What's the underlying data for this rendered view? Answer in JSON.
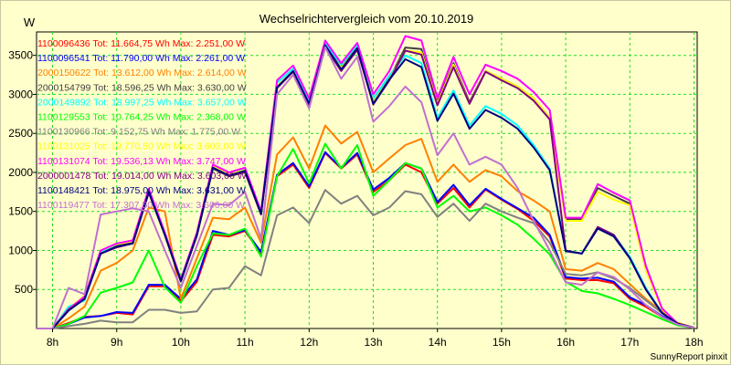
{
  "chart_data": {
    "type": "line",
    "title": "Wechselrichtervergleich vom 20.10.2019",
    "ylabel": "W",
    "xlabel": "",
    "footer": "SunnyReport pinxit",
    "ylim": [
      0,
      3800
    ],
    "xlim": [
      7.75,
      18.05
    ],
    "y_ticks": [
      500,
      1000,
      1500,
      2000,
      2500,
      3000,
      3500
    ],
    "x_ticks": [
      8,
      9,
      10,
      11,
      12,
      13,
      14,
      15,
      16,
      17,
      18
    ],
    "x_tick_labels": [
      "8h",
      "9h",
      "10h",
      "11h",
      "12h",
      "13h",
      "14h",
      "15h",
      "16h",
      "17h",
      "18h"
    ],
    "grid": true,
    "legend_position": "top-left",
    "x": [
      7.75,
      8.0,
      8.25,
      8.5,
      8.75,
      9.0,
      9.25,
      9.5,
      9.75,
      10.0,
      10.25,
      10.5,
      10.75,
      11.0,
      11.25,
      11.5,
      11.75,
      12.0,
      12.25,
      12.5,
      12.75,
      13.0,
      13.25,
      13.5,
      13.75,
      14.0,
      14.25,
      14.5,
      14.75,
      15.0,
      15.25,
      15.5,
      15.75,
      16.0,
      16.25,
      16.5,
      16.75,
      17.0,
      17.25,
      17.5,
      17.75,
      18.0
    ],
    "series": [
      {
        "name": "1100096436 Tot: 11.664,75 Wh Max: 2.251,00 W",
        "color": "#ff0000",
        "values": [
          0,
          0,
          70,
          150,
          160,
          200,
          180,
          540,
          540,
          350,
          600,
          1200,
          1180,
          1250,
          960,
          1950,
          2100,
          1800,
          2250,
          2050,
          2230,
          1750,
          1900,
          2100,
          2000,
          1600,
          1800,
          1550,
          1780,
          1650,
          1530,
          1380,
          1180,
          640,
          620,
          620,
          580,
          380,
          280,
          150,
          60,
          10
        ]
      },
      {
        "name": "1100096541 Tot: 11.790,00 Wh Max: 2.261,00 W",
        "color": "#0000ff",
        "values": [
          0,
          0,
          60,
          140,
          160,
          210,
          200,
          560,
          560,
          380,
          630,
          1250,
          1200,
          1260,
          980,
          1970,
          2120,
          1820,
          2260,
          2060,
          2250,
          1780,
          1930,
          2120,
          2050,
          1620,
          1840,
          1580,
          1790,
          1660,
          1540,
          1420,
          1200,
          660,
          640,
          650,
          600,
          400,
          300,
          160,
          60,
          10
        ]
      },
      {
        "name": "2000150622 Tot: 13.612,00 Wh Max: 2.614,00 W",
        "color": "#ff8000",
        "values": [
          0,
          0,
          130,
          280,
          740,
          840,
          1000,
          1550,
          1500,
          380,
          900,
          1420,
          1400,
          1550,
          1100,
          2230,
          2450,
          2050,
          2600,
          2370,
          2520,
          2000,
          2180,
          2350,
          2430,
          1880,
          2100,
          1880,
          2030,
          1950,
          1760,
          1640,
          1500,
          760,
          740,
          840,
          760,
          570,
          380,
          220,
          70,
          10
        ]
      },
      {
        "name": "2000154799 Tot: 18.596,25 Wh Max: 3.630,00 W",
        "color": "#404040",
        "values": [
          0,
          0,
          240,
          400,
          980,
          1070,
          1100,
          1750,
          1200,
          600,
          1200,
          2050,
          1950,
          2000,
          1470,
          3100,
          3300,
          2900,
          3630,
          3350,
          3600,
          2900,
          3200,
          3600,
          3580,
          2900,
          3400,
          2900,
          3300,
          3200,
          3100,
          2950,
          2700,
          1400,
          1400,
          1800,
          1700,
          1600,
          800,
          250,
          60,
          10
        ]
      },
      {
        "name": "2000149892 Tot: 18.997,25 Wh Max: 3.657,00 W",
        "color": "#00ffff",
        "values": [
          0,
          0,
          280,
          360,
          980,
          1080,
          1120,
          1780,
          1200,
          630,
          1220,
          2080,
          1980,
          2040,
          1480,
          3150,
          3330,
          2930,
          3657,
          3380,
          3630,
          2950,
          3240,
          3500,
          3400,
          2700,
          3050,
          2600,
          2850,
          2750,
          2600,
          2350,
          2050,
          1000,
          960,
          1300,
          1200,
          920,
          520,
          200,
          60,
          10
        ]
      },
      {
        "name": "1100129553 Tot: 10.764,25 Wh Max: 2.368,00 W",
        "color": "#00ff00",
        "values": [
          0,
          0,
          60,
          160,
          460,
          520,
          590,
          1000,
          530,
          330,
          800,
          1220,
          1200,
          1280,
          920,
          1950,
          2300,
          1860,
          2368,
          2050,
          2350,
          1700,
          1900,
          2120,
          2050,
          1550,
          1700,
          1500,
          1550,
          1450,
          1330,
          1150,
          950,
          600,
          480,
          450,
          380,
          300,
          210,
          120,
          40,
          10
        ]
      },
      {
        "name": "1100130966 Tot: 9.152,75 Wh Max: 1.775,00 W",
        "color": "#808080",
        "values": [
          0,
          0,
          30,
          60,
          100,
          80,
          80,
          240,
          240,
          200,
          220,
          500,
          520,
          800,
          680,
          1450,
          1550,
          1350,
          1775,
          1600,
          1700,
          1450,
          1550,
          1760,
          1720,
          1430,
          1600,
          1380,
          1600,
          1500,
          1420,
          1350,
          1100,
          700,
          680,
          720,
          640,
          520,
          360,
          200,
          60,
          10
        ]
      },
      {
        "name": "1100131025 Tot: 19.770,50 Wh Max: 3.603,00 W",
        "color": "#ffff00",
        "values": [
          0,
          0,
          250,
          420,
          1000,
          1080,
          1120,
          1780,
          1230,
          620,
          1220,
          2080,
          1980,
          2030,
          1490,
          3100,
          3300,
          2880,
          3600,
          3340,
          3580,
          2900,
          3190,
          3560,
          3540,
          2880,
          3380,
          2880,
          3300,
          3200,
          3100,
          2950,
          2700,
          1380,
          1380,
          1750,
          1650,
          1580,
          750,
          250,
          60,
          10
        ]
      },
      {
        "name": "1100131074 Tot: 19.536,13 Wh Max: 3.747,00 W",
        "color": "#ff00ff",
        "values": [
          0,
          0,
          250,
          410,
          1000,
          1090,
          1130,
          1790,
          1230,
          630,
          1230,
          2100,
          2000,
          2060,
          1500,
          3180,
          3370,
          2950,
          3690,
          3400,
          3660,
          3000,
          3300,
          3747,
          3690,
          2950,
          3480,
          3000,
          3380,
          3300,
          3200,
          3030,
          2800,
          1420,
          1420,
          1850,
          1740,
          1640,
          800,
          260,
          60,
          10
        ]
      },
      {
        "name": "2000001478 Tot: 19.014,00 Wh Max: 3.603,00 W",
        "color": "#800080",
        "values": [
          0,
          0,
          240,
          380,
          960,
          1040,
          1090,
          1740,
          1200,
          610,
          1190,
          2060,
          1960,
          2010,
          1460,
          3080,
          3290,
          2870,
          3603,
          3300,
          3570,
          2870,
          3180,
          3560,
          3510,
          2860,
          3350,
          2880,
          3290,
          3180,
          3080,
          2920,
          2680,
          1000,
          960,
          1300,
          1200,
          900,
          500,
          200,
          60,
          10
        ]
      },
      {
        "name": "1100148421 Tot: 18.975,00 Wh Max: 3.631,00 W",
        "color": "#000080",
        "values": [
          0,
          0,
          230,
          380,
          960,
          1050,
          1090,
          1750,
          1200,
          610,
          1200,
          2060,
          1960,
          2020,
          1470,
          3090,
          3300,
          2880,
          3631,
          3320,
          3590,
          2880,
          3190,
          3450,
          3350,
          2660,
          3010,
          2560,
          2800,
          2700,
          2560,
          2320,
          2030,
          990,
          960,
          1280,
          1180,
          900,
          500,
          200,
          60,
          10
        ]
      },
      {
        "name": "1100119477 Tot: 17.307,50 Wh Max: 3.606,00 W",
        "color": "#c070d0",
        "values": [
          0,
          0,
          520,
          440,
          1460,
          1500,
          1540,
          1500,
          1000,
          520,
          1060,
          1600,
          1580,
          1750,
          1150,
          3000,
          3250,
          2820,
          3606,
          3200,
          3480,
          2650,
          2850,
          3100,
          2900,
          2220,
          2500,
          2100,
          2200,
          2100,
          1800,
          1380,
          1000,
          590,
          560,
          720,
          660,
          500,
          300,
          150,
          50,
          10
        ]
      }
    ]
  }
}
